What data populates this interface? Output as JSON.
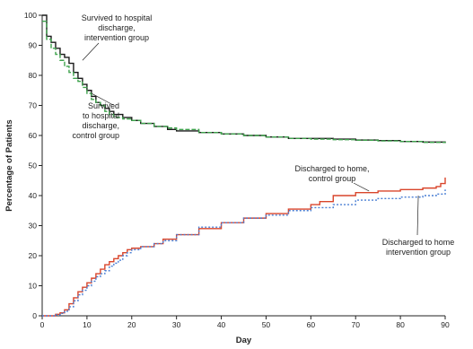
{
  "chart_data": {
    "type": "line",
    "xlabel": "Day",
    "ylabel": "Percentage of Patients",
    "xlim": [
      0,
      90
    ],
    "ylim": [
      0,
      100
    ],
    "x_ticks": [
      0,
      10,
      20,
      30,
      40,
      50,
      60,
      70,
      80,
      90
    ],
    "y_ticks": [
      0,
      10,
      20,
      30,
      40,
      50,
      60,
      70,
      80,
      90,
      100
    ],
    "grid": false,
    "legend": "none",
    "colors": {
      "survived_intervention": "#1a1a1a",
      "survived_control": "#3fa34d",
      "home_control": "#d9452b",
      "home_intervention": "#4a7fd4"
    },
    "series": [
      {
        "key": "survived_intervention",
        "style": "solid-step",
        "x": [
          0,
          1,
          2,
          3,
          4,
          5,
          6,
          7,
          8,
          9,
          10,
          11,
          12,
          13,
          14,
          15,
          16,
          18,
          20,
          22,
          25,
          28,
          30,
          35,
          40,
          45,
          50,
          55,
          60,
          65,
          70,
          75,
          80,
          85,
          90
        ],
        "y": [
          100,
          93,
          91,
          89,
          87,
          86,
          84,
          81,
          79,
          77,
          75,
          73,
          71,
          70,
          69,
          68,
          67,
          66,
          65,
          64,
          63,
          62,
          61.5,
          61,
          60.5,
          60,
          59.5,
          59,
          59,
          58.8,
          58.5,
          58.3,
          58,
          57.8,
          57.5
        ]
      },
      {
        "key": "survived_control",
        "style": "dashed-step",
        "x": [
          0,
          1,
          2,
          3,
          4,
          5,
          6,
          7,
          8,
          9,
          10,
          11,
          12,
          13,
          14,
          15,
          16,
          18,
          20,
          22,
          25,
          28,
          30,
          35,
          40,
          45,
          50,
          55,
          60,
          65,
          70,
          75,
          80,
          85,
          90
        ],
        "y": [
          98,
          92,
          89,
          87,
          85,
          83,
          81,
          79,
          78,
          76,
          74,
          72,
          71,
          70,
          68,
          67,
          66,
          65.5,
          65,
          64,
          63,
          62.5,
          62,
          61,
          60.5,
          60,
          59.5,
          59,
          58.8,
          58.6,
          58.4,
          58.2,
          58,
          57.7,
          57.5
        ]
      },
      {
        "key": "home_control",
        "style": "solid-step",
        "x": [
          0,
          2,
          3,
          4,
          5,
          6,
          7,
          8,
          9,
          10,
          11,
          12,
          13,
          14,
          15,
          16,
          17,
          18,
          19,
          20,
          22,
          25,
          27,
          30,
          35,
          40,
          45,
          50,
          55,
          60,
          62,
          65,
          70,
          75,
          80,
          85,
          88,
          89,
          90
        ],
        "y": [
          0,
          0,
          0.5,
          1,
          2,
          4,
          6,
          8,
          9.5,
          11,
          12.5,
          14,
          15.5,
          17,
          18,
          19,
          20,
          21,
          22,
          22.5,
          23,
          24,
          25.5,
          27,
          29,
          31,
          32.5,
          34,
          35.5,
          37,
          38,
          40,
          41,
          41.5,
          42,
          42.5,
          43,
          44,
          46
        ]
      },
      {
        "key": "home_intervention",
        "style": "dotted-step",
        "x": [
          0,
          2,
          3,
          4,
          5,
          6,
          7,
          8,
          9,
          10,
          11,
          12,
          13,
          14,
          15,
          16,
          17,
          18,
          19,
          20,
          22,
          25,
          27,
          30,
          35,
          40,
          45,
          50,
          55,
          60,
          65,
          70,
          75,
          80,
          85,
          88,
          90
        ],
        "y": [
          0,
          0,
          0.3,
          0.8,
          1.5,
          3,
          5,
          7,
          8.5,
          10,
          11.5,
          13,
          14,
          15,
          16.5,
          17.5,
          18.5,
          20,
          21,
          22,
          23,
          24,
          25,
          27,
          29.5,
          31,
          32.5,
          33.5,
          35,
          36,
          37,
          38.5,
          39,
          39.5,
          40,
          40.5,
          42
        ]
      }
    ],
    "annotations": [
      {
        "id": "survived-intervention",
        "lines": [
          "Survived to hospital",
          "discharge,",
          "intervention group"
        ],
        "anchor_x": 9,
        "anchor_y": 85
      },
      {
        "id": "survived-control",
        "lines": [
          "Survived",
          "to hospital",
          "discharge,",
          "control group"
        ],
        "anchor_x": 11,
        "anchor_y": 74
      },
      {
        "id": "home-control",
        "lines": [
          "Discharged to home,",
          "control group"
        ],
        "anchor_x": 73,
        "anchor_y": 41.5
      },
      {
        "id": "home-intervention",
        "lines": [
          "Discharged to home",
          "intervention group"
        ],
        "anchor_x": 84,
        "anchor_y": 40
      }
    ]
  }
}
